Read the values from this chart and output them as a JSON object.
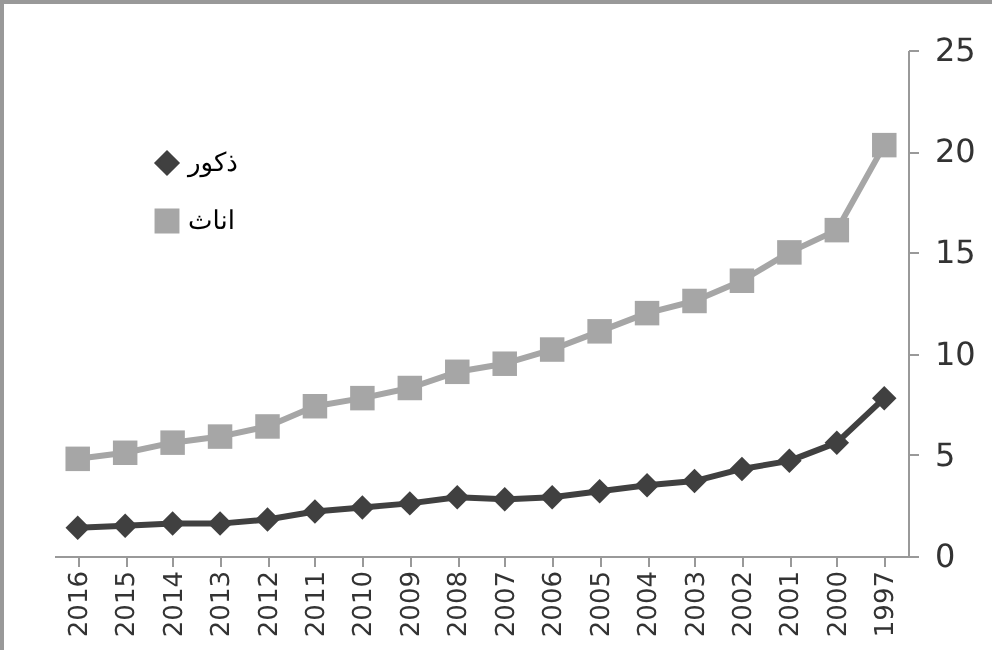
{
  "chart_data": {
    "type": "line",
    "categories": [
      "2016",
      "2015",
      "2014",
      "2013",
      "2012",
      "2011",
      "2010",
      "2009",
      "2008",
      "2007",
      "2006",
      "2005",
      "2004",
      "2003",
      "2002",
      "2001",
      "2000",
      "1997"
    ],
    "series": [
      {
        "name": "ذكور",
        "color": "#404040",
        "marker": "diamond",
        "values": [
          1.4,
          1.5,
          1.6,
          1.6,
          1.8,
          2.2,
          2.4,
          2.6,
          2.9,
          2.8,
          2.9,
          3.2,
          3.5,
          3.7,
          4.3,
          4.7,
          5.6,
          7.8
        ]
      },
      {
        "name": "اناث",
        "color": "#a6a6a6",
        "marker": "square",
        "values": [
          4.8,
          5.1,
          5.6,
          5.9,
          6.4,
          7.4,
          7.8,
          8.3,
          9.1,
          9.5,
          10.2,
          11.1,
          12.0,
          12.6,
          13.6,
          15.0,
          16.1,
          20.3
        ]
      }
    ],
    "ylim": [
      0,
      25
    ],
    "yticks": [
      0,
      5,
      10,
      15,
      20,
      25
    ],
    "grid": false,
    "legend": "top left"
  }
}
